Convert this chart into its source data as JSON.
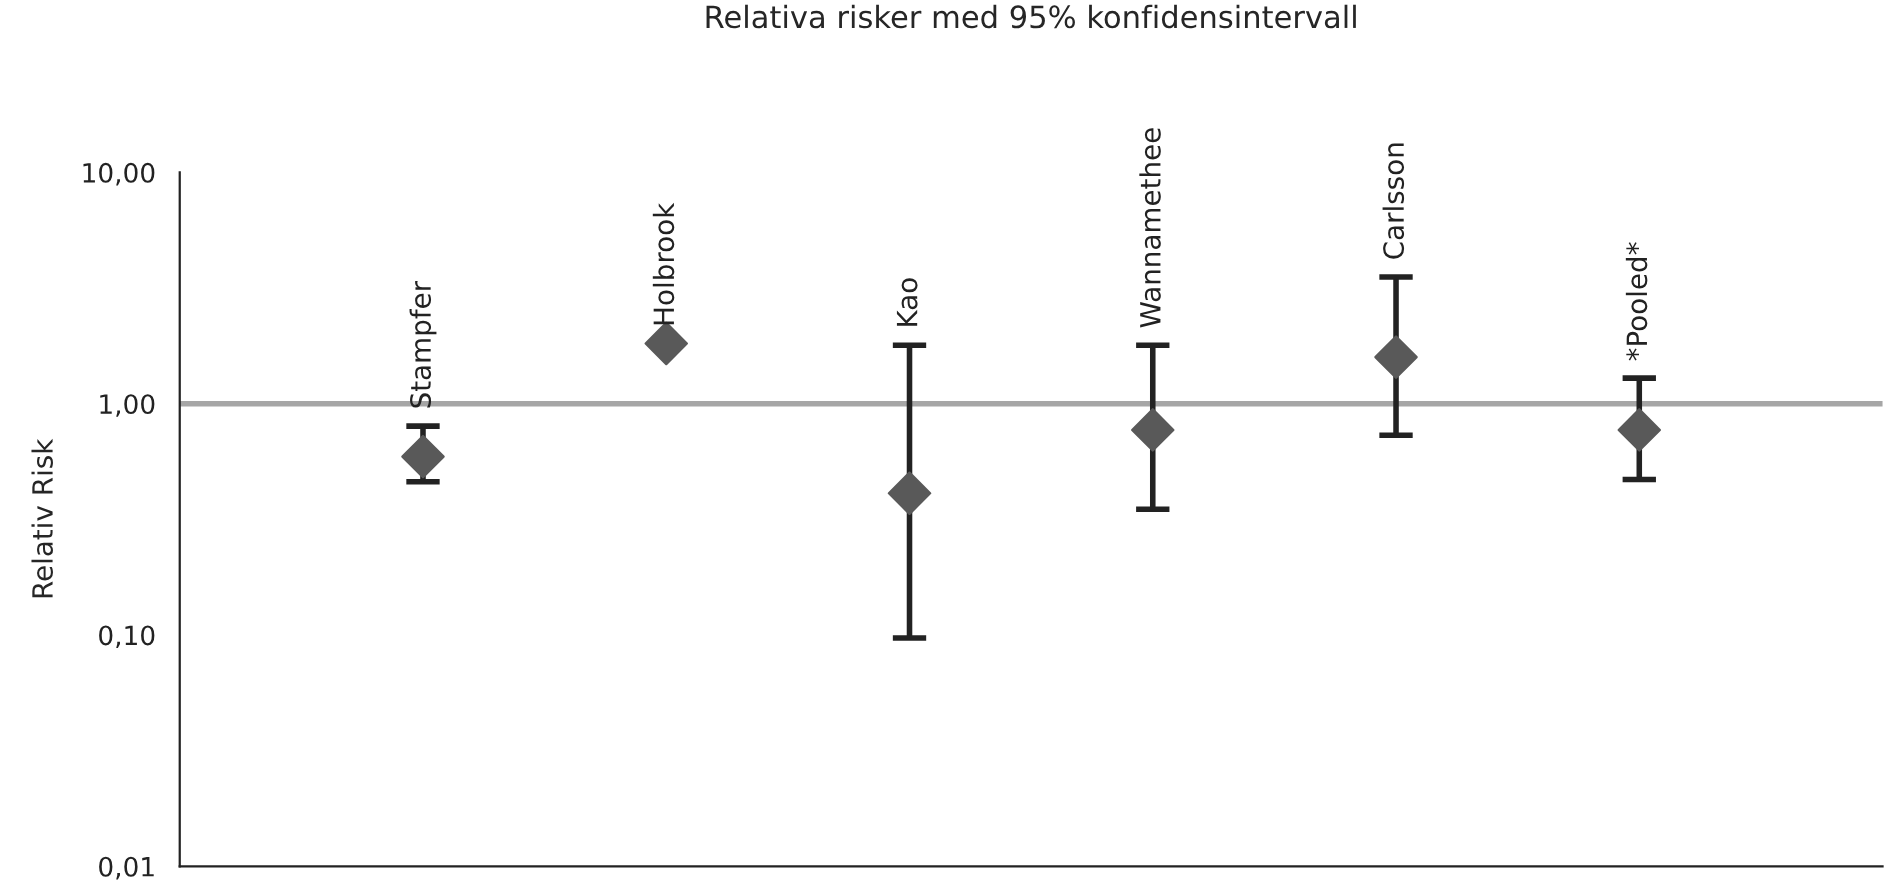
{
  "chart_data": {
    "type": "scatter",
    "title": "Relativa risker med 95% konfidensintervall",
    "ylabel": "Relativ Risk",
    "categories": [
      "Stampfer",
      "Holbrook",
      "Kao",
      "Wannamethee",
      "Carlsson",
      "*Pooled*"
    ],
    "series": [
      {
        "color": "#595959",
        "values": [
          0.59,
          1.82,
          0.41,
          0.77,
          1.59,
          0.77
        ],
        "errors": [
          [
            0.46,
            0.8
          ],
          null,
          [
            0.097,
            1.79
          ],
          [
            0.35,
            1.79
          ],
          [
            0.73,
            3.53
          ],
          [
            0.47,
            1.29
          ]
        ]
      }
    ],
    "marker": "diamond",
    "log": "y",
    "ylim": [
      0.01,
      10
    ],
    "yticks": [
      {
        "value": 0.01,
        "label": "0,01"
      },
      {
        "value": 0.1,
        "label": "0,10"
      },
      {
        "value": 1,
        "label": "1,00"
      },
      {
        "value": 10,
        "label": "10,00"
      }
    ],
    "ref_lines": [
      {
        "axis": "y",
        "value": 1,
        "color": "#a6a6a6"
      }
    ],
    "tick_labels": "y",
    "grid": false,
    "legend": false
  }
}
